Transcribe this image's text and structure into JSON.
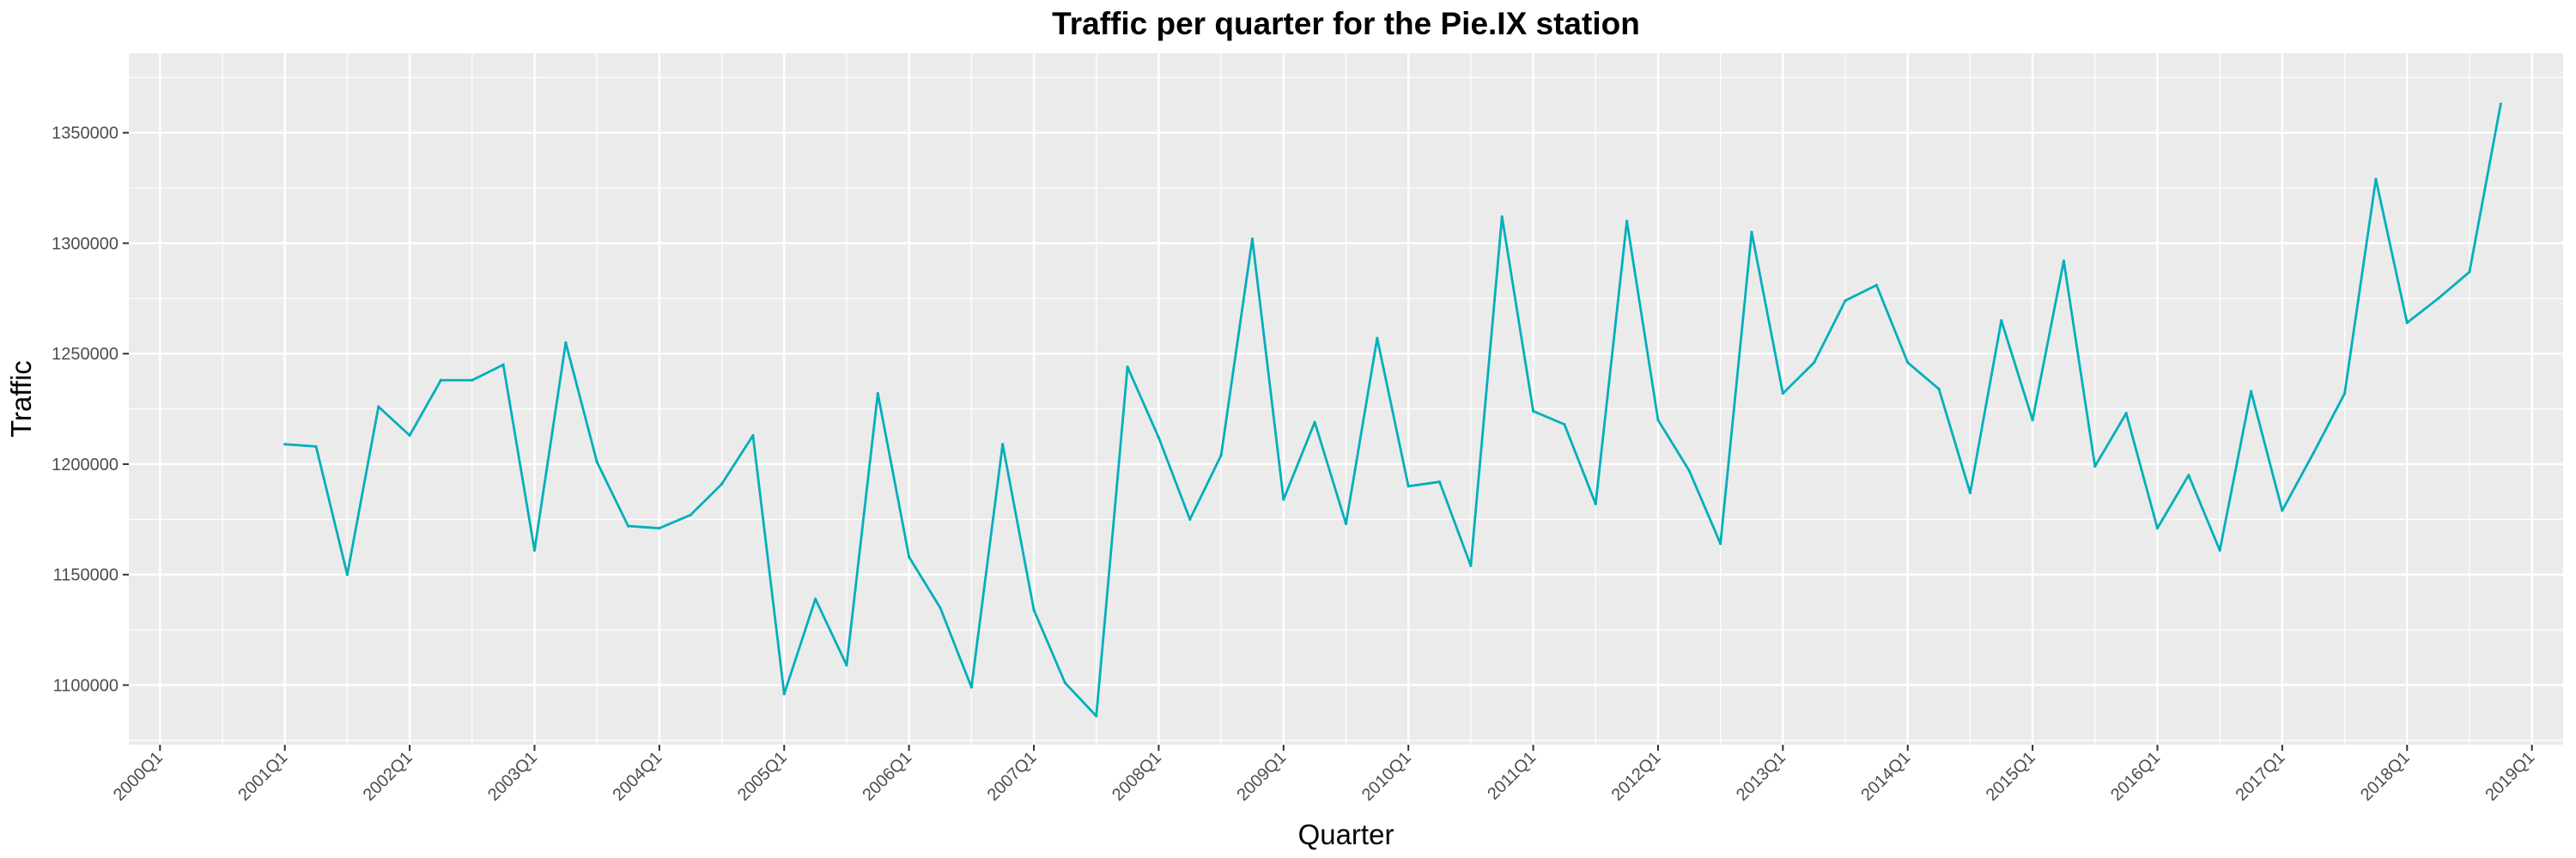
{
  "chart_data": {
    "type": "line",
    "title": "Traffic per quarter for the Pie.IX station",
    "xlabel": "Quarter",
    "ylabel": "Traffic",
    "grid": true,
    "legend": "none",
    "colors": {
      "line": "#00AFBB",
      "panel": "#EBEBEB",
      "grid": "#FFFFFF",
      "tick_text": "#4D4D4D",
      "tick_mark": "#333333"
    },
    "x_tick_labels": [
      "2000Q1",
      "2001Q1",
      "2002Q1",
      "2003Q1",
      "2004Q1",
      "2005Q1",
      "2006Q1",
      "2007Q1",
      "2008Q1",
      "2009Q1",
      "2010Q1",
      "2011Q1",
      "2012Q1",
      "2013Q1",
      "2014Q1",
      "2015Q1",
      "2016Q1",
      "2017Q1",
      "2018Q1",
      "2019Q1"
    ],
    "y_ticks": [
      1100000,
      1150000,
      1200000,
      1250000,
      1300000,
      1350000
    ],
    "y_tick_labels": [
      "1100000",
      "1150000",
      "1200000",
      "1250000",
      "1300000",
      "1350000"
    ],
    "xlim": [
      "1999Q4",
      "2019Q2"
    ],
    "ylim": [
      1073000,
      1386000
    ],
    "x": [
      "2001Q1",
      "2001Q2",
      "2001Q3",
      "2001Q4",
      "2002Q1",
      "2002Q2",
      "2002Q3",
      "2002Q4",
      "2003Q1",
      "2003Q2",
      "2003Q3",
      "2003Q4",
      "2004Q1",
      "2004Q2",
      "2004Q3",
      "2004Q4",
      "2005Q1",
      "2005Q2",
      "2005Q3",
      "2005Q4",
      "2006Q1",
      "2006Q2",
      "2006Q3",
      "2006Q4",
      "2007Q1",
      "2007Q2",
      "2007Q3",
      "2007Q4",
      "2008Q1",
      "2008Q2",
      "2008Q3",
      "2008Q4",
      "2009Q1",
      "2009Q2",
      "2009Q3",
      "2009Q4",
      "2010Q1",
      "2010Q2",
      "2010Q3",
      "2010Q4",
      "2011Q1",
      "2011Q2",
      "2011Q3",
      "2011Q4",
      "2012Q1",
      "2012Q2",
      "2012Q3",
      "2012Q4",
      "2013Q1",
      "2013Q2",
      "2013Q3",
      "2013Q4",
      "2014Q1",
      "2014Q2",
      "2014Q3",
      "2014Q4",
      "2015Q1",
      "2015Q2",
      "2015Q3",
      "2015Q4",
      "2016Q1",
      "2016Q2",
      "2016Q3",
      "2016Q4",
      "2017Q1",
      "2017Q2",
      "2017Q3",
      "2017Q4",
      "2018Q1",
      "2018Q2",
      "2018Q3",
      "2018Q4"
    ],
    "values": [
      1209000,
      1208000,
      1150000,
      1226000,
      1213000,
      1238000,
      1238000,
      1245000,
      1161000,
      1255000,
      1201000,
      1172000,
      1171000,
      1177000,
      1191000,
      1213000,
      1096000,
      1139000,
      1109000,
      1232000,
      1158000,
      1135000,
      1099000,
      1209000,
      1134000,
      1101000,
      1086000,
      1244000,
      1212000,
      1175000,
      1204000,
      1302000,
      1184000,
      1219000,
      1173000,
      1257000,
      1190000,
      1192000,
      1154000,
      1312000,
      1224000,
      1218000,
      1182000,
      1310000,
      1220000,
      1197000,
      1164000,
      1305000,
      1232000,
      1246000,
      1274000,
      1281000,
      1246000,
      1234000,
      1187000,
      1265000,
      1220000,
      1292000,
      1199000,
      1223000,
      1171000,
      1195000,
      1161000,
      1233000,
      1179000,
      1205000,
      1232000,
      1329000,
      1264000,
      1275000,
      1287000,
      1363000
    ]
  }
}
